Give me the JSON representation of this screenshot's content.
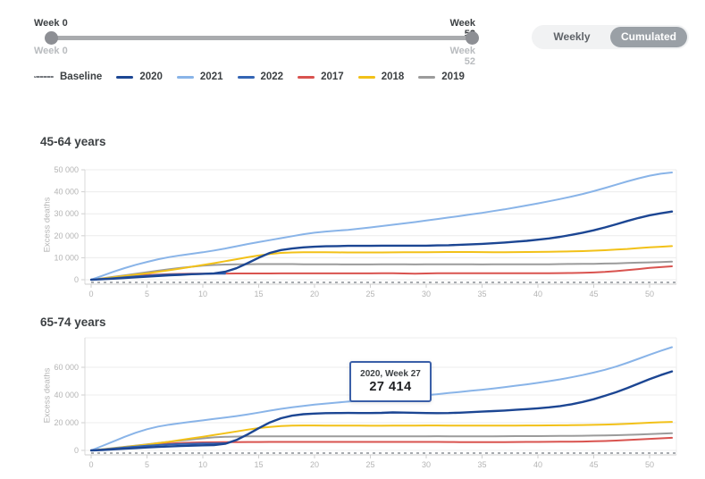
{
  "header": {
    "slider": {
      "start_label": "Week 0",
      "end_label": "Week 52",
      "start_sublabel": "Week 0",
      "end_sublabel": "Week 52"
    },
    "toggle": {
      "options": [
        {
          "label": "Weekly",
          "selected": false
        },
        {
          "label": "Cumulated",
          "selected": true
        }
      ]
    }
  },
  "legend": {
    "items": [
      {
        "label": "Baseline",
        "color": "#75797e",
        "style": "dotted"
      },
      {
        "label": "2020",
        "color": "#1c4693",
        "style": "solid"
      },
      {
        "label": "2021",
        "color": "#89b4e8",
        "style": "solid"
      },
      {
        "label": "2022",
        "color": "#3465b4",
        "style": "solid"
      },
      {
        "label": "2017",
        "color": "#d9534f",
        "style": "solid"
      },
      {
        "label": "2018",
        "color": "#f2c118",
        "style": "solid"
      },
      {
        "label": "2019",
        "color": "#9b9b9b",
        "style": "solid"
      }
    ]
  },
  "chart_data": [
    {
      "type": "line",
      "title": "45-64 years",
      "xlabel": "",
      "ylabel": "Excess deaths",
      "x_unit": "week",
      "xlim": [
        0,
        52
      ],
      "ylim": [
        0,
        50800
      ],
      "grid": true,
      "xticks": [
        0,
        5,
        10,
        15,
        20,
        25,
        30,
        35,
        40,
        45,
        50
      ],
      "yticks": [
        0,
        10000,
        20000,
        30000,
        40000,
        50000
      ],
      "ytick_labels": [
        "0",
        "10 000",
        "20 000",
        "30 000",
        "40 000",
        "50 000"
      ],
      "baseline": {
        "value": 0,
        "style": "dashed"
      },
      "series": [
        {
          "name": "2021",
          "color": "#89b4e8",
          "values": [
            0,
            1800,
            3600,
            5300,
            6800,
            8100,
            9300,
            10300,
            11100,
            11800,
            12500,
            13300,
            14200,
            15200,
            16200,
            17100,
            18000,
            18900,
            19800,
            20700,
            21400,
            21900,
            22300,
            22700,
            23200,
            23800,
            24400,
            25000,
            25600,
            26200,
            26900,
            27600,
            28300,
            29000,
            29700,
            30400,
            31200,
            32000,
            32900,
            33800,
            34700,
            35700,
            36700,
            37800,
            39000,
            40300,
            41700,
            43200,
            44700,
            46100,
            47300,
            48200,
            48800
          ]
        },
        {
          "name": "2020",
          "color": "#1c4693",
          "values": [
            0,
            250,
            500,
            800,
            1100,
            1400,
            1700,
            2000,
            2250,
            2500,
            2700,
            2900,
            3600,
            5200,
            7500,
            10000,
            12200,
            13500,
            14200,
            14700,
            15000,
            15200,
            15300,
            15400,
            15400,
            15400,
            15500,
            15500,
            15500,
            15500,
            15500,
            15600,
            15700,
            15900,
            16100,
            16300,
            16600,
            16900,
            17300,
            17700,
            18200,
            18800,
            19500,
            20400,
            21400,
            22500,
            23800,
            25200,
            26700,
            28100,
            29300,
            30200,
            31000
          ]
        },
        {
          "name": "2022",
          "color": "#3465b4",
          "values": [
            0,
            350,
            750,
            1150,
            1500,
            1800,
            2100,
            2300,
            2450,
            2550,
            2650,
            2720,
            2780
          ]
        },
        {
          "name": "2017",
          "color": "#d9534f",
          "values": [
            0,
            450,
            950,
            1400,
            1800,
            2100,
            2350,
            2550,
            2650,
            2720,
            2760,
            2790,
            2810,
            2830,
            2840,
            2850,
            2860,
            2870,
            2870,
            2880,
            2880,
            2890,
            2890,
            2900,
            2900,
            2900,
            2910,
            2910,
            2850,
            2750,
            2850,
            2920,
            2930,
            2930,
            2940,
            2940,
            2950,
            2950,
            2960,
            2960,
            2970,
            2980,
            3000,
            3050,
            3150,
            3300,
            3550,
            3900,
            4350,
            4850,
            5350,
            5750,
            6100
          ]
        },
        {
          "name": "2018",
          "color": "#f2c118",
          "values": [
            0,
            500,
            1100,
            1700,
            2300,
            2900,
            3600,
            4300,
            5100,
            5900,
            6700,
            7500,
            8400,
            9300,
            10200,
            11000,
            11700,
            12200,
            12400,
            12500,
            12500,
            12500,
            12450,
            12400,
            12400,
            12400,
            12400,
            12450,
            12500,
            12500,
            12500,
            12550,
            12600,
            12600,
            12600,
            12550,
            12500,
            12500,
            12550,
            12600,
            12650,
            12700,
            12800,
            12900,
            13000,
            13200,
            13400,
            13700,
            14000,
            14400,
            14700,
            15000,
            15300
          ]
        },
        {
          "name": "2019",
          "color": "#9b9b9b",
          "values": [
            0,
            600,
            1300,
            2000,
            2700,
            3400,
            4100,
            4800,
            5400,
            5900,
            6400,
            6700,
            6900,
            7000,
            7050,
            7100,
            7100,
            7100,
            7100,
            7050,
            7000,
            7000,
            6980,
            6950,
            6950,
            6950,
            7000,
            7000,
            6980,
            6950,
            7000,
            7050,
            7050,
            7000,
            6980,
            6950,
            6980,
            7000,
            7000,
            7000,
            7050,
            7050,
            7100,
            7150,
            7200,
            7250,
            7350,
            7450,
            7600,
            7750,
            7900,
            8050,
            8200
          ]
        }
      ]
    },
    {
      "type": "line",
      "title": "65-74 years",
      "xlabel": "",
      "ylabel": "Excess deaths",
      "x_unit": "week",
      "xlim": [
        0,
        52
      ],
      "ylim": [
        0,
        81000
      ],
      "grid": true,
      "xticks": [
        0,
        5,
        10,
        15,
        20,
        25,
        30,
        35,
        40,
        45,
        50
      ],
      "yticks": [
        0,
        20000,
        40000,
        60000
      ],
      "ytick_labels": [
        "0",
        "20 000",
        "40 000",
        "60 000"
      ],
      "baseline": {
        "value": 0,
        "style": "dashed"
      },
      "tooltip": {
        "label": "2020, Week 27",
        "value": "27 414"
      },
      "series": [
        {
          "name": "2021",
          "color": "#89b4e8",
          "values": [
            0,
            3200,
            6500,
            9800,
            12800,
            15300,
            17200,
            18600,
            19700,
            20700,
            21700,
            22700,
            23700,
            24800,
            26000,
            27300,
            28700,
            30000,
            31100,
            32100,
            33000,
            33800,
            34500,
            35200,
            35900,
            36600,
            37200,
            37800,
            38400,
            39100,
            39800,
            40600,
            41400,
            42200,
            43000,
            43800,
            44700,
            45700,
            46700,
            47700,
            48800,
            50000,
            51300,
            52800,
            54400,
            56200,
            58200,
            60500,
            63200,
            66100,
            69100,
            71900,
            74500
          ]
        },
        {
          "name": "2020",
          "color": "#1c4693",
          "values": [
            0,
            350,
            750,
            1200,
            1650,
            2100,
            2500,
            2850,
            3150,
            3400,
            3650,
            3900,
            4800,
            7500,
            11500,
            16000,
            20200,
            23200,
            25100,
            26100,
            26600,
            26900,
            27000,
            27050,
            27000,
            26950,
            27100,
            27414,
            27300,
            27150,
            27000,
            26900,
            27000,
            27250,
            27600,
            28000,
            28400,
            28800,
            29300,
            29800,
            30400,
            31100,
            32000,
            33300,
            35000,
            37000,
            39400,
            42000,
            45000,
            48200,
            51400,
            54400,
            57000
          ]
        },
        {
          "name": "2022",
          "color": "#3465b4",
          "values": [
            0,
            600,
            1300,
            2100,
            2800,
            3400,
            3900,
            4300,
            4600,
            4800,
            4950,
            5050,
            5150
          ]
        },
        {
          "name": "2017",
          "color": "#d9534f",
          "values": [
            0,
            600,
            1300,
            2100,
            2900,
            3600,
            4300,
            4900,
            5300,
            5600,
            5800,
            5900,
            5950,
            6000,
            6050,
            6050,
            6100,
            6100,
            6100,
            6100,
            6100,
            6100,
            6100,
            6100,
            6100,
            6100,
            6100,
            6100,
            6100,
            6100,
            6100,
            6100,
            6050,
            6000,
            6000,
            6000,
            5950,
            6000,
            6050,
            6100,
            6150,
            6200,
            6250,
            6300,
            6400,
            6550,
            6800,
            7100,
            7500,
            7900,
            8300,
            8700,
            9100
          ]
        },
        {
          "name": "2018",
          "color": "#f2c118",
          "values": [
            0,
            700,
            1500,
            2400,
            3300,
            4200,
            5200,
            6300,
            7500,
            8700,
            9900,
            11100,
            12400,
            13700,
            15000,
            16100,
            17000,
            17600,
            17900,
            18000,
            18000,
            17950,
            17900,
            17900,
            17850,
            17800,
            17800,
            17850,
            17900,
            17950,
            18000,
            18000,
            17950,
            17900,
            17900,
            17900,
            17850,
            17900,
            17950,
            18000,
            18000,
            18050,
            18100,
            18200,
            18300,
            18450,
            18650,
            18900,
            19200,
            19600,
            20000,
            20300,
            20600
          ]
        },
        {
          "name": "2019",
          "color": "#9b9b9b",
          "values": [
            0,
            800,
            1700,
            2600,
            3500,
            4400,
            5300,
            6200,
            7100,
            7900,
            8700,
            9400,
            9800,
            10000,
            10100,
            10150,
            10200,
            10200,
            10200,
            10150,
            10100,
            10100,
            10100,
            10150,
            10200,
            10200,
            10150,
            10100,
            10100,
            10150,
            10200,
            10250,
            10200,
            10150,
            10100,
            10150,
            10200,
            10250,
            10300,
            10300,
            10350,
            10400,
            10450,
            10500,
            10600,
            10700,
            10850,
            11000,
            11200,
            11450,
            11750,
            12100,
            12400
          ]
        }
      ]
    }
  ]
}
